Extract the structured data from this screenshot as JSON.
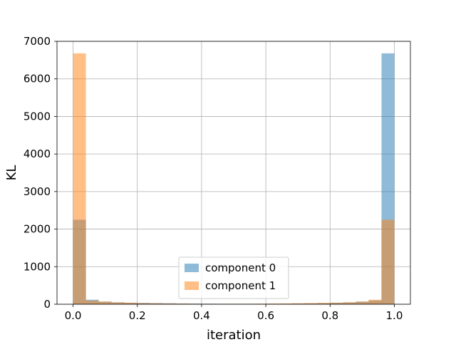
{
  "chart_data": {
    "type": "bar",
    "title": "",
    "xlabel": "iteration",
    "ylabel": "KL",
    "xlim": [
      -0.05,
      1.05
    ],
    "ylim": [
      0,
      7000
    ],
    "xticks": [
      0.0,
      0.2,
      0.4,
      0.6,
      0.8,
      1.0
    ],
    "xtick_labels": [
      "0.0",
      "0.2",
      "0.4",
      "0.6",
      "0.8",
      "1.0"
    ],
    "yticks": [
      0,
      1000,
      2000,
      3000,
      4000,
      5000,
      6000,
      7000
    ],
    "ytick_labels": [
      "0",
      "1000",
      "2000",
      "3000",
      "4000",
      "5000",
      "6000",
      "7000"
    ],
    "grid": true,
    "legend_position": "lower center",
    "bin_edges": [
      0.0,
      0.04,
      0.08,
      0.12,
      0.16,
      0.2,
      0.24,
      0.28,
      0.32,
      0.36,
      0.4,
      0.44,
      0.48,
      0.52,
      0.56,
      0.6,
      0.64,
      0.68,
      0.72,
      0.76,
      0.8,
      0.84,
      0.88,
      0.92,
      0.96,
      1.0
    ],
    "series": [
      {
        "name": "component 0",
        "color": "#1f77b4",
        "opacity": 0.5,
        "values": [
          2250,
          120,
          70,
          50,
          40,
          35,
          30,
          25,
          20,
          18,
          15,
          12,
          12,
          12,
          12,
          15,
          18,
          20,
          25,
          30,
          40,
          50,
          70,
          100,
          6680
        ]
      },
      {
        "name": "component 1",
        "color": "#ff7f0e",
        "opacity": 0.5,
        "values": [
          6680,
          100,
          70,
          50,
          40,
          30,
          25,
          20,
          18,
          15,
          12,
          12,
          12,
          12,
          15,
          18,
          20,
          25,
          30,
          35,
          40,
          50,
          70,
          120,
          2250
        ]
      }
    ]
  }
}
